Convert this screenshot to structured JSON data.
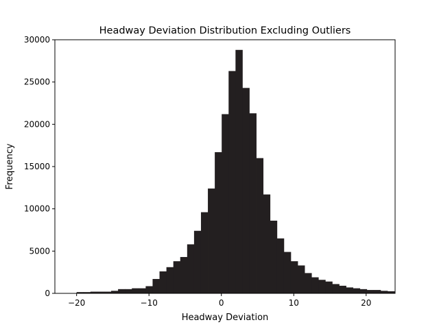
{
  "chart_data": {
    "type": "bar",
    "title": "Headway Deviation Distribution Excluding Outliers",
    "xlabel": "Headway Deviation",
    "ylabel": "Frequency",
    "xlim": [
      -23,
      24
    ],
    "ylim": [
      0,
      30000
    ],
    "x_ticks": [
      -20,
      -10,
      0,
      10,
      20
    ],
    "x_tick_labels": [
      "−20",
      "−10",
      "0",
      "10",
      "20"
    ],
    "y_ticks": [
      0,
      5000,
      10000,
      15000,
      20000,
      25000,
      30000
    ],
    "y_tick_labels": [
      "0",
      "5000",
      "10000",
      "15000",
      "20000",
      "25000",
      "30000"
    ],
    "bar_color": "#231f20",
    "grid": false,
    "bin_start": -20,
    "bin_width": 0.9545,
    "values": [
      150,
      150,
      200,
      200,
      200,
      300,
      500,
      500,
      600,
      600,
      850,
      1700,
      2600,
      3100,
      3800,
      4300,
      5800,
      7400,
      9600,
      12400,
      16700,
      21200,
      26300,
      28800,
      24300,
      21300,
      16000,
      11700,
      8600,
      6500,
      4900,
      3800,
      3300,
      2400,
      1900,
      1600,
      1400,
      1100,
      900,
      700,
      600,
      500,
      400,
      400,
      300,
      250
    ]
  }
}
